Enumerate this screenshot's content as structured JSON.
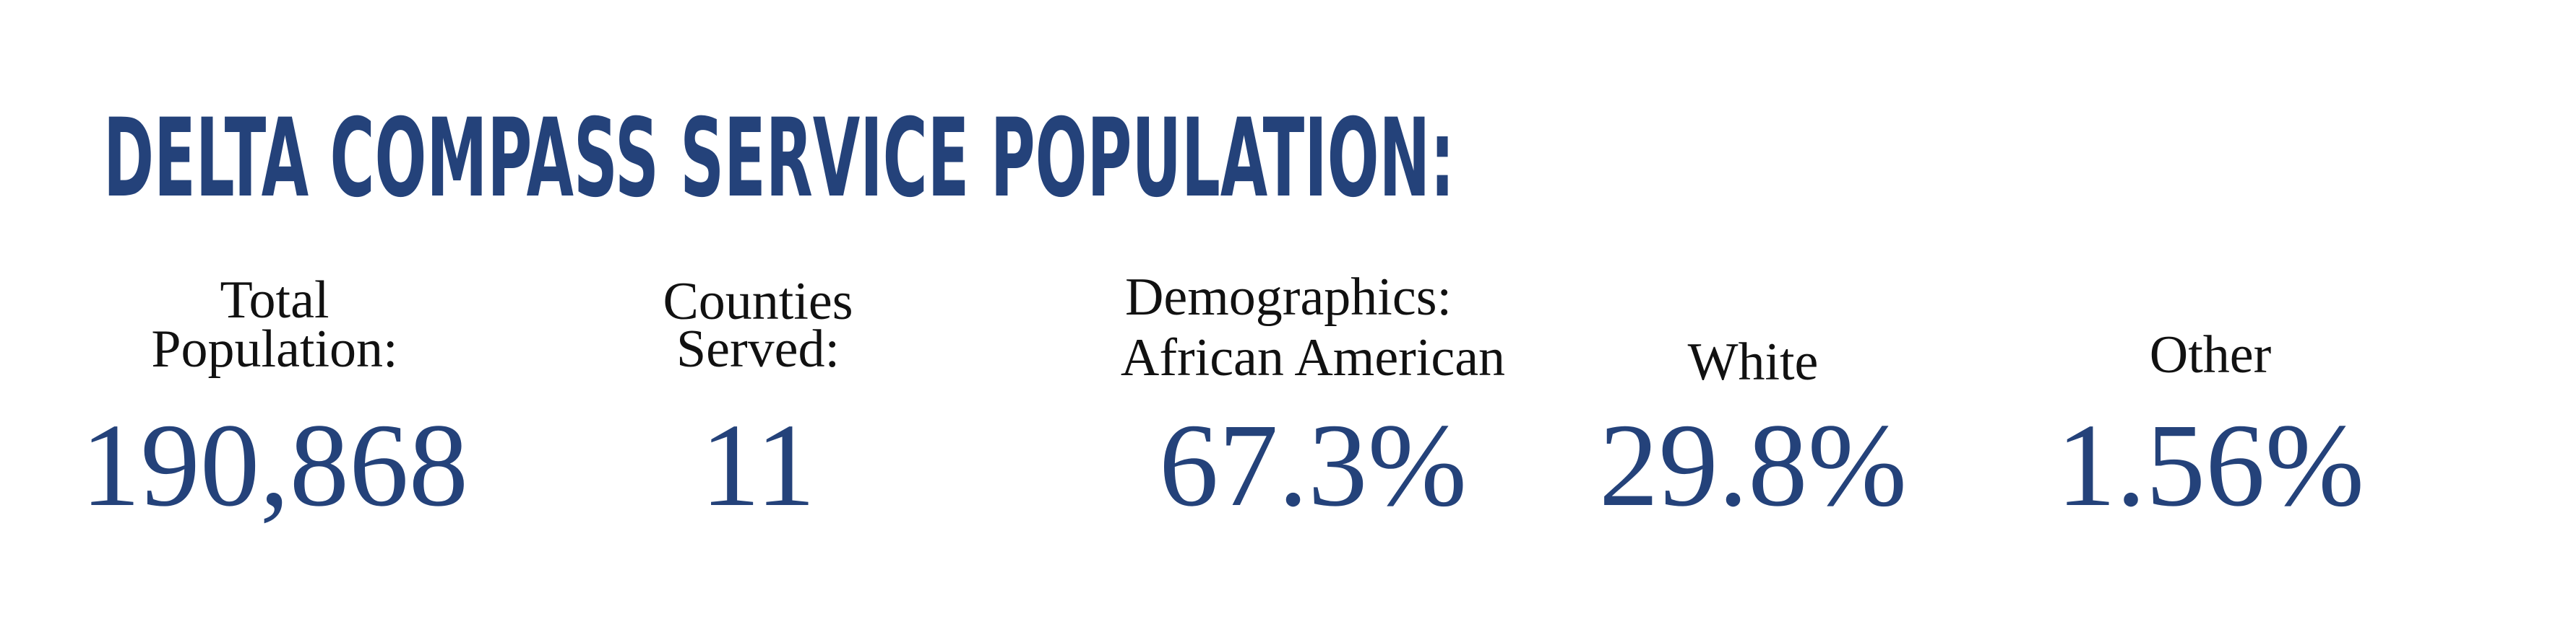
{
  "header": {
    "title": "DELTA COMPASS SERVICE POPULATION:"
  },
  "stats": [
    {
      "label": [
        "Total",
        "Population:"
      ],
      "value": "190,868"
    },
    {
      "label": [
        "Counties",
        "Served:"
      ],
      "value": "11"
    }
  ],
  "demographics": {
    "label": "Demographics:",
    "groups": [
      {
        "label": "African American",
        "value": "67.3%"
      },
      {
        "label": "White",
        "value": "29.8%"
      },
      {
        "label": "Other",
        "value": "1.56%"
      }
    ]
  }
}
